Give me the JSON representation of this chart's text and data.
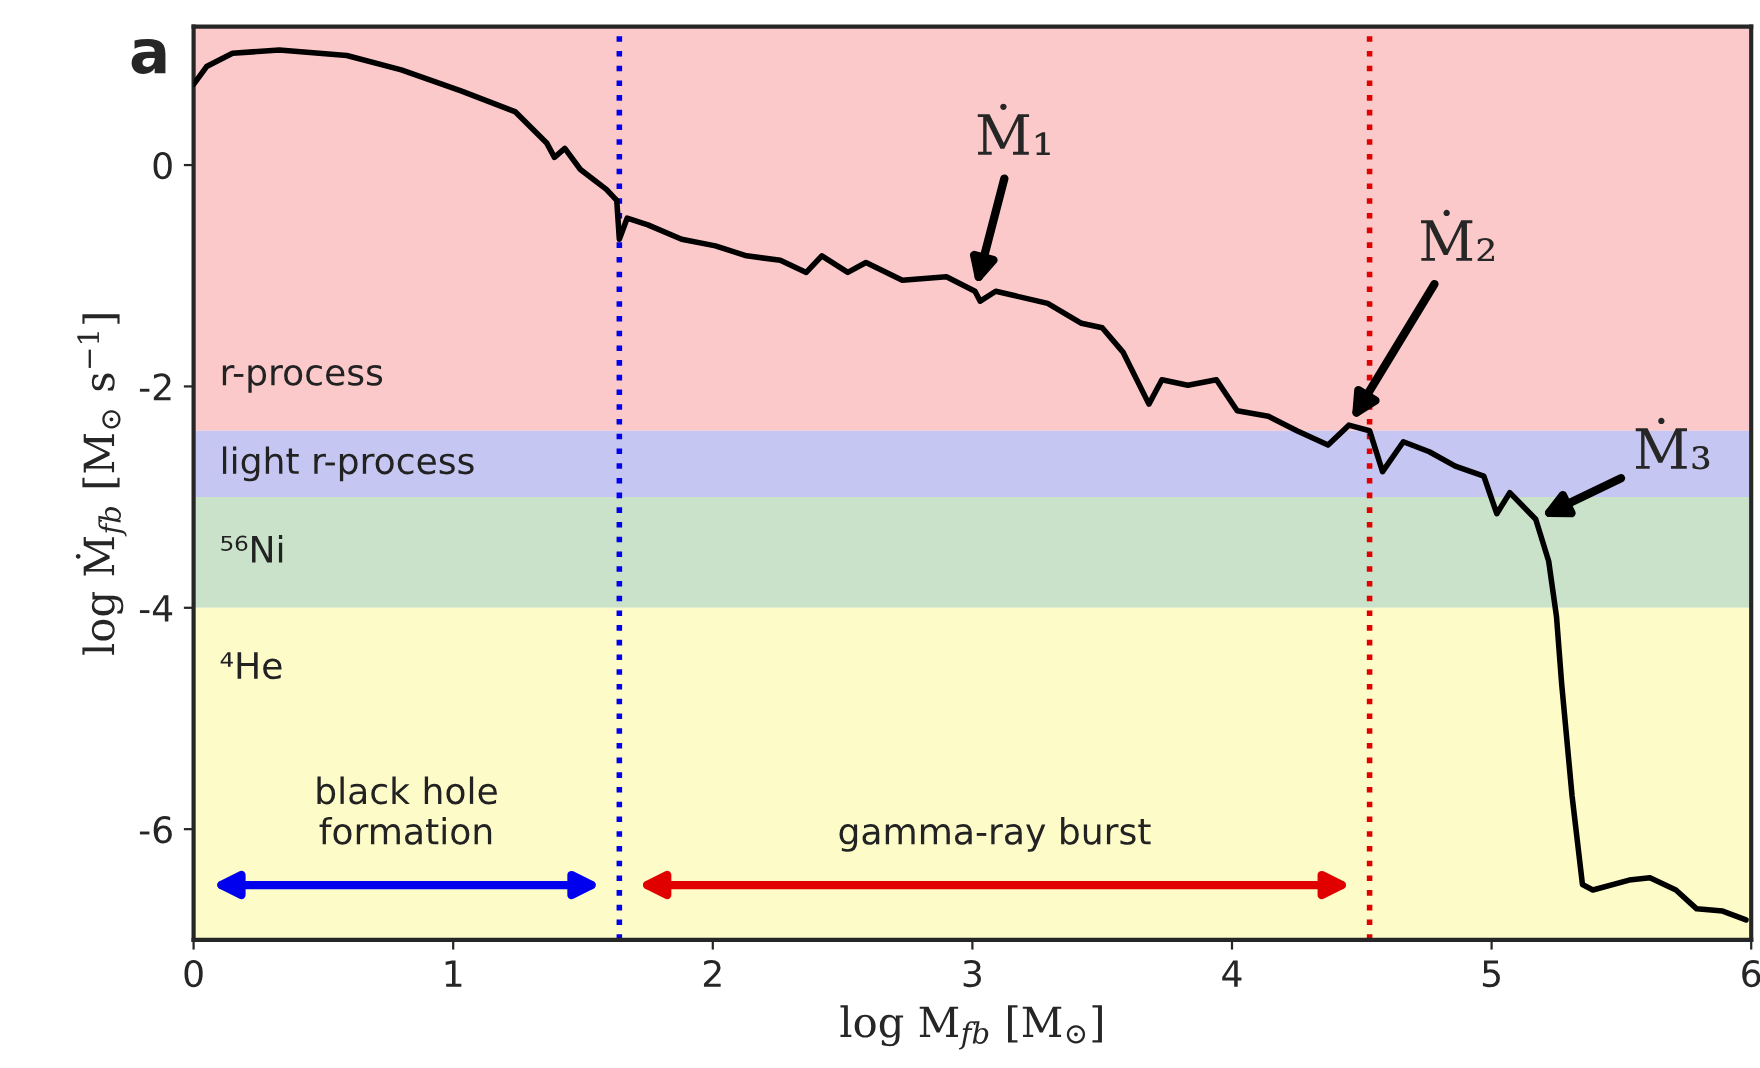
{
  "chart_data": {
    "type": "line",
    "title": "a",
    "xlabel": "log M$_{fb}$ [M$_{⊙}$]",
    "ylabel": "log Ṁ$_{fb}$ [M$_{⊙}$ s$^{−1}$]",
    "xlim": [
      0,
      6
    ],
    "ylim": [
      -7,
      1.25
    ],
    "xticks": [
      0,
      1,
      2,
      3,
      4,
      5,
      6
    ],
    "yticks": [
      -6,
      -4,
      -2,
      0
    ],
    "grid": false,
    "legend": false,
    "marker": "none",
    "line_style": "solid",
    "series": [
      {
        "color": "#000000",
        "x": [
          0,
          0.05,
          0.15,
          0.33,
          0.59,
          0.8,
          1.03,
          1.24,
          1.36,
          1.39,
          1.43,
          1.49,
          1.59,
          1.63,
          1.64,
          1.67,
          1.75,
          1.88,
          2.01,
          2.13,
          2.26,
          2.36,
          2.42,
          2.52,
          2.59,
          2.73,
          2.9,
          3.01,
          3.03,
          3.09,
          3.29,
          3.42,
          3.5,
          3.58,
          3.68,
          3.73,
          3.83,
          3.94,
          4.02,
          4.14,
          4.25,
          4.37,
          4.45,
          4.53,
          4.58,
          4.66,
          4.76,
          4.86,
          4.97,
          5.02,
          5.07,
          5.17,
          5.22,
          5.25,
          5.27,
          5.31,
          5.35,
          5.39,
          5.53,
          5.61,
          5.71,
          5.79,
          5.89,
          5.98
        ],
        "values": [
          0.73,
          0.89,
          1.01,
          1.04,
          0.99,
          0.86,
          0.67,
          0.48,
          0.2,
          0.07,
          0.15,
          -0.04,
          -0.22,
          -0.32,
          -0.67,
          -0.48,
          -0.54,
          -0.67,
          -0.73,
          -0.82,
          -0.86,
          -0.97,
          -0.82,
          -0.97,
          -0.88,
          -1.04,
          -1.01,
          -1.14,
          -1.23,
          -1.14,
          -1.25,
          -1.43,
          -1.47,
          -1.69,
          -2.16,
          -1.94,
          -1.99,
          -1.94,
          -2.22,
          -2.27,
          -2.4,
          -2.53,
          -2.35,
          -2.4,
          -2.77,
          -2.5,
          -2.59,
          -2.72,
          -2.81,
          -3.15,
          -2.96,
          -3.2,
          -3.58,
          -4.08,
          -4.69,
          -5.7,
          -6.5,
          -6.55,
          -6.46,
          -6.44,
          -6.55,
          -6.72,
          -6.74,
          -6.82
        ]
      }
    ],
    "bands": [
      {
        "axis": "y",
        "from": -2.4,
        "to": 1.25,
        "label": "r-process",
        "color": "#fbc9c9"
      },
      {
        "axis": "y",
        "from": -3,
        "to": -2.4,
        "label": "light r-process",
        "color": "#c6c6f2"
      },
      {
        "axis": "y",
        "from": -4,
        "to": -3,
        "label": "⁵⁶Ni",
        "color": "#c9e2c9"
      },
      {
        "axis": "y",
        "from": -7,
        "to": -4,
        "label": "⁴He",
        "color": "#fdfbc8"
      }
    ],
    "ref_lines": [
      {
        "axis": "x",
        "value": 1.64,
        "color": "#0000ee",
        "line_style": "dotted"
      },
      {
        "axis": "x",
        "value": 4.53,
        "color": "#e00000",
        "line_style": "dotted"
      }
    ],
    "annotations": [
      {
        "text": "Ṁ₁",
        "x": 3.01,
        "y": -1.14
      },
      {
        "text": "Ṁ₂",
        "x": 4.45,
        "y": -2.35
      },
      {
        "text": "Ṁ₃",
        "x": 5.17,
        "y": -3.2
      },
      "black hole formation",
      "gamma-ray burst"
    ]
  }
}
